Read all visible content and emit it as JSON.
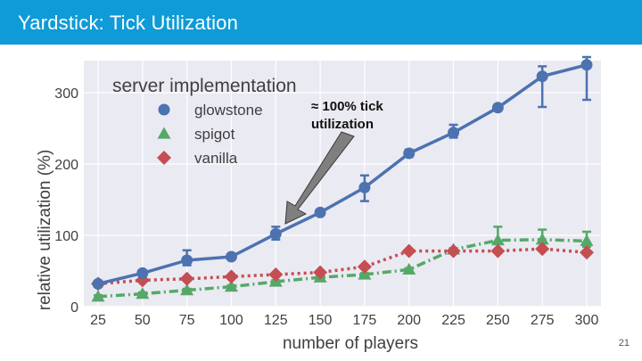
{
  "slide": {
    "title": "Yardstick: Tick Utilization",
    "page_number": "21",
    "accent_color": "#0f9bd7"
  },
  "chart_data": {
    "type": "line",
    "title": "",
    "xlabel": "number of players",
    "ylabel": "relative utilization (%)",
    "x": [
      25,
      50,
      75,
      100,
      125,
      150,
      175,
      200,
      225,
      250,
      275,
      300
    ],
    "x_tick_labels": [
      "25",
      "50",
      "75",
      "100",
      "125",
      "150",
      "175",
      "200",
      "225",
      "250",
      "275",
      "300"
    ],
    "y_ticks": [
      0,
      100,
      200,
      300
    ],
    "y_tick_labels": [
      "0",
      "100",
      "200",
      "300"
    ],
    "ylim": [
      0,
      345
    ],
    "grid": true,
    "legend": {
      "title": "server implementation",
      "location": "top-left"
    },
    "series": [
      {
        "name": "glowstone",
        "color": "#4c72b0",
        "marker": "circle",
        "line_style": "solid",
        "values": [
          32,
          47,
          65,
          70,
          102,
          132,
          167,
          215,
          244,
          279,
          323,
          339
        ],
        "error_low": [
          30,
          45,
          58,
          67,
          94,
          130,
          148,
          210,
          237,
          275,
          280,
          290
        ],
        "error_high": [
          35,
          49,
          79,
          73,
          112,
          134,
          184,
          220,
          255,
          283,
          337,
          350
        ]
      },
      {
        "name": "spigot",
        "color": "#55a868",
        "marker": "triangle",
        "line_style": "dash-dot",
        "values": [
          14,
          18,
          23,
          28,
          35,
          41,
          45,
          52,
          80,
          93,
          94,
          92
        ],
        "error_low": [
          12,
          16,
          21,
          26,
          33,
          39,
          43,
          50,
          78,
          79,
          82,
          84
        ],
        "error_high": [
          16,
          20,
          25,
          30,
          37,
          43,
          47,
          54,
          82,
          112,
          108,
          105
        ]
      },
      {
        "name": "vanilla",
        "color": "#c44e52",
        "marker": "diamond",
        "line_style": "dotted",
        "values": [
          32,
          37,
          39,
          42,
          45,
          48,
          56,
          78,
          78,
          78,
          81,
          76
        ],
        "error_low": [
          31,
          36,
          38,
          41,
          44,
          47,
          55,
          77,
          77,
          77,
          80,
          75
        ],
        "error_high": [
          33,
          38,
          40,
          43,
          46,
          49,
          57,
          79,
          79,
          79,
          82,
          77
        ]
      }
    ],
    "annotation": {
      "line1": "≈ 100% tick",
      "line2": "utilization",
      "points_to_x": 125,
      "points_to_y": 102
    }
  }
}
